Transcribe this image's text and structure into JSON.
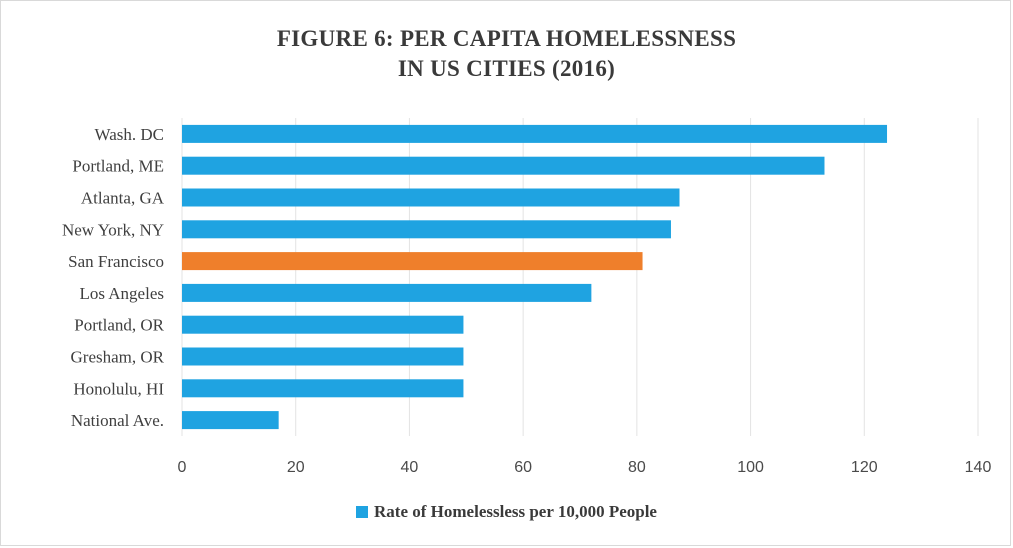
{
  "chart_data": {
    "type": "bar",
    "orientation": "horizontal",
    "title_line1": "FIGURE 6: PER CAPITA HOMELESSNESS",
    "title_line2": "IN US CITIES (2016)",
    "categories": [
      "Wash. DC",
      "Portland, ME",
      "Atlanta, GA",
      "New York, NY",
      "San Francisco",
      "Los Angeles",
      "Portland, OR",
      "Gresham, OR",
      "Honolulu, HI",
      "National Ave."
    ],
    "series": [
      {
        "name": "Rate of Homelessless per 10,000 People",
        "values": [
          124,
          113,
          87.5,
          86,
          81,
          72,
          49.5,
          49.5,
          49.5,
          17
        ]
      }
    ],
    "highlight_category": "San Francisco",
    "xlim": [
      0,
      140
    ],
    "xticks": [
      "0",
      "20",
      "40",
      "60",
      "80",
      "100",
      "120",
      "140"
    ],
    "grid": "vertical",
    "legend_position": "bottom",
    "colors": {
      "bar": "#1fa3e1",
      "highlight": "#ef7f2b",
      "grid": "#e3e3e3"
    }
  }
}
